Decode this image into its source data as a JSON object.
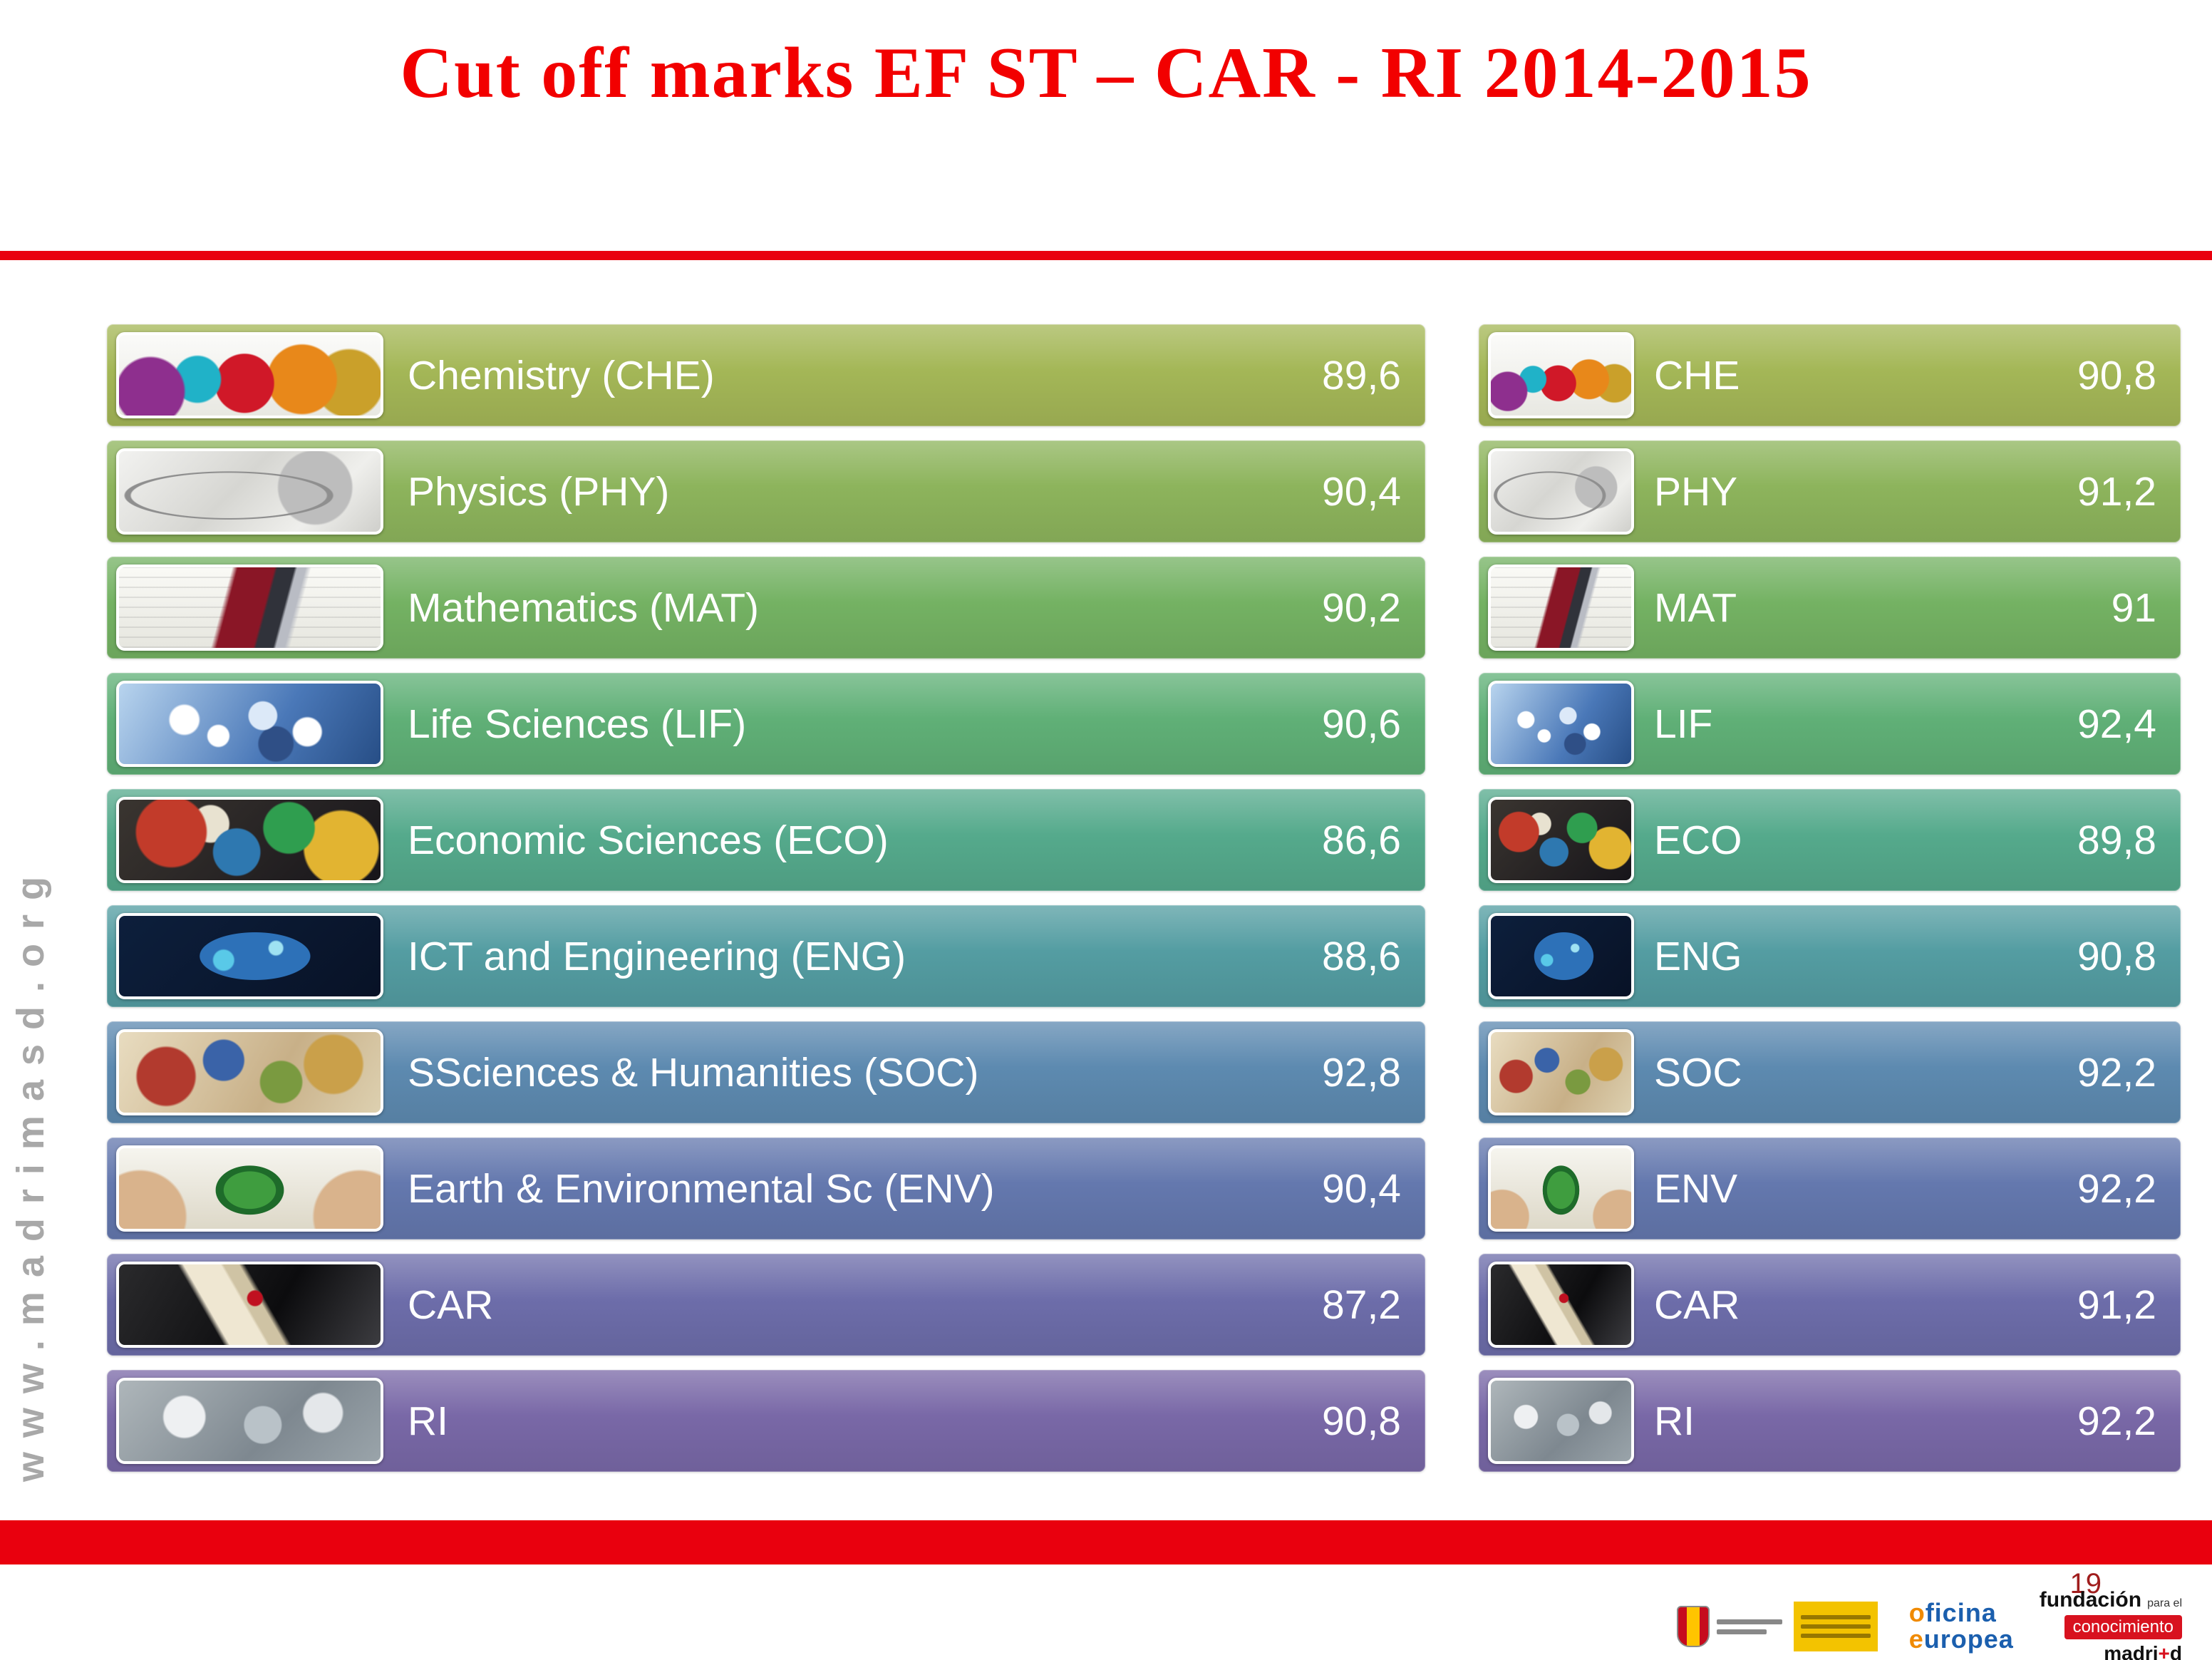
{
  "title": "Cut off marks EF ST – CAR - RI 2014-2015",
  "watermark": "www.madrimasd.org",
  "colors": {
    "accent_red": "#e9000e",
    "title_red": "#f20000",
    "row_colors": [
      "#a4b757",
      "#8db45c",
      "#74b263",
      "#60b077",
      "#55aa8c",
      "#549da2",
      "#5d8ab0",
      "#6478ae",
      "#6d6daa",
      "#7968a7"
    ]
  },
  "icons": [
    "chemistry-flasks-icon",
    "physics-sketch-icon",
    "mathematics-pen-icon",
    "life-sciences-molecule-icon",
    "economic-sciences-collage-icon",
    "ict-engineering-globe-icon",
    "social-sciences-collage-icon",
    "earth-environment-globe-icon",
    "car-diploma-icon",
    "ri-lab-icon"
  ],
  "left_table": {
    "rows": [
      {
        "label": "Chemistry (CHE)",
        "value": "89,6"
      },
      {
        "label": "Physics (PHY)",
        "value": "90,4"
      },
      {
        "label": "Mathematics (MAT)",
        "value": "90,2"
      },
      {
        "label": "Life Sciences (LIF)",
        "value": "90,6"
      },
      {
        "label": "Economic Sciences (ECO)",
        "value": "86,6"
      },
      {
        "label": "ICT and Engineering (ENG)",
        "value": "88,6"
      },
      {
        "label": "SSciences & Humanities (SOC)",
        "value": "92,8"
      },
      {
        "label": "Earth & Environmental Sc (ENV)",
        "value": "90,4"
      },
      {
        "label": "CAR",
        "value": "87,2"
      },
      {
        "label": "RI",
        "value": "90,8"
      }
    ]
  },
  "right_table": {
    "rows": [
      {
        "label": "CHE",
        "value": "90,8"
      },
      {
        "label": "PHY",
        "value": "91,2"
      },
      {
        "label": "MAT",
        "value": "91"
      },
      {
        "label": "LIF",
        "value": "92,4"
      },
      {
        "label": "ECO",
        "value": "89,8"
      },
      {
        "label": "ENG",
        "value": "90,8"
      },
      {
        "label": "SOC",
        "value": "92,2"
      },
      {
        "label": "ENV",
        "value": "92,2"
      },
      {
        "label": "CAR",
        "value": "91,2"
      },
      {
        "label": "RI",
        "value": "92,2"
      }
    ]
  },
  "footer": {
    "page_number": "19",
    "logos": {
      "oficina_europea": {
        "line1": "oficina",
        "line2": "europea"
      },
      "fundacion": {
        "name": "fundación",
        "tagline": "para el",
        "box": "conocimiento",
        "brand_pre": "madri",
        "brand_plus": "+",
        "brand_post": "d"
      }
    }
  }
}
